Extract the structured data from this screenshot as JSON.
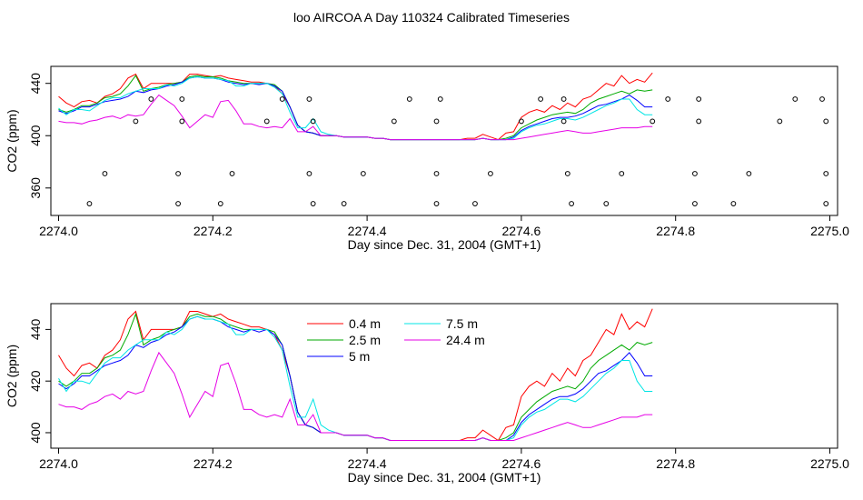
{
  "figure": {
    "title": "loo AIRCOA A  Day 110324  Calibrated Timeseries"
  },
  "chart_data": [
    {
      "type": "line",
      "ylabel": "CO2 (ppm)",
      "xlabel": "Day since Dec. 31, 2004 (GMT+1)",
      "xlim": [
        2273.99,
        2275.01
      ],
      "ylim": [
        339,
        453
      ],
      "xticks": [
        "2274.0",
        "2274.2",
        "2274.4",
        "2274.6",
        "2274.8",
        "2275.0"
      ],
      "yticks": [
        "360",
        "400",
        "440"
      ],
      "series_colors": [
        "#ff0000",
        "#00aa00",
        "#0000ff",
        "#00e5e5",
        "#e600e6"
      ],
      "points_description": "open circle markers",
      "points": [
        [
          2274.04,
          348
        ],
        [
          2274.06,
          371
        ],
        [
          2274.1,
          411
        ],
        [
          2274.12,
          428
        ],
        [
          2274.155,
          348
        ],
        [
          2274.155,
          371
        ],
        [
          2274.16,
          411
        ],
        [
          2274.16,
          428
        ],
        [
          2274.21,
          348
        ],
        [
          2274.225,
          371
        ],
        [
          2274.27,
          411
        ],
        [
          2274.29,
          428
        ],
        [
          2274.325,
          371
        ],
        [
          2274.325,
          428
        ],
        [
          2274.33,
          348
        ],
        [
          2274.33,
          411
        ],
        [
          2274.37,
          348
        ],
        [
          2274.395,
          371
        ],
        [
          2274.435,
          411
        ],
        [
          2274.455,
          428
        ],
        [
          2274.49,
          348
        ],
        [
          2274.49,
          371
        ],
        [
          2274.49,
          411
        ],
        [
          2274.495,
          428
        ],
        [
          2274.54,
          348
        ],
        [
          2274.56,
          371
        ],
        [
          2274.6,
          411
        ],
        [
          2274.625,
          428
        ],
        [
          2274.655,
          428
        ],
        [
          2274.655,
          411
        ],
        [
          2274.66,
          371
        ],
        [
          2274.665,
          348
        ],
        [
          2274.71,
          348
        ],
        [
          2274.73,
          371
        ],
        [
          2274.77,
          411
        ],
        [
          2274.79,
          428
        ],
        [
          2274.825,
          348
        ],
        [
          2274.825,
          371
        ],
        [
          2274.83,
          411
        ],
        [
          2274.83,
          428
        ],
        [
          2274.875,
          348
        ],
        [
          2274.895,
          371
        ],
        [
          2274.935,
          411
        ],
        [
          2274.955,
          428
        ],
        [
          2274.99,
          428
        ],
        [
          2274.995,
          411
        ],
        [
          2274.995,
          371
        ],
        [
          2274.995,
          348
        ]
      ]
    },
    {
      "type": "line",
      "ylabel": "CO2 (ppm)",
      "xlabel": "Day since Dec. 31, 2004 (GMT+1)",
      "xlim": [
        2273.99,
        2275.01
      ],
      "ylim": [
        394,
        450
      ],
      "xticks": [
        "2274.0",
        "2274.2",
        "2274.4",
        "2274.6",
        "2274.8",
        "2275.0"
      ],
      "yticks": [
        "400",
        "420",
        "440"
      ],
      "legend": {
        "position": "top-center"
      },
      "series": [
        {
          "name": "0.4 m",
          "color": "#ff0000"
        },
        {
          "name": "2.5 m",
          "color": "#00aa00"
        },
        {
          "name": "5 m",
          "color": "#0000ff"
        },
        {
          "name": "7.5 m",
          "color": "#00e5e5"
        },
        {
          "name": "24.4 m",
          "color": "#e600e6"
        }
      ]
    }
  ],
  "series_shared": {
    "step": 0.01,
    "x_start": 2274.0,
    "values": [
      [
        430,
        425,
        422,
        426,
        427,
        425,
        430,
        432,
        436,
        444,
        447,
        436,
        440,
        440,
        440,
        440,
        441,
        447,
        447,
        446,
        445,
        446,
        444,
        443,
        442,
        441,
        441,
        440,
        438,
        432,
        422,
        408,
        403,
        402,
        400,
        400,
        400,
        399,
        399,
        399,
        399,
        398,
        398,
        397,
        397,
        397,
        397,
        397,
        397,
        397,
        397,
        397,
        397,
        398,
        398,
        401,
        399,
        397,
        402,
        403,
        414,
        418,
        420,
        418,
        423,
        420,
        425,
        422,
        428,
        430,
        435,
        440,
        438,
        446,
        440,
        443,
        441,
        448
      ],
      [
        420,
        418,
        420,
        423,
        423,
        425,
        429,
        430,
        432,
        438,
        446,
        434,
        436,
        437,
        439,
        440,
        441,
        445,
        446,
        445,
        445,
        444,
        442,
        441,
        440,
        440,
        440,
        440,
        439,
        434,
        422,
        408,
        403,
        402,
        400,
        400,
        400,
        399,
        399,
        399,
        399,
        398,
        398,
        397,
        397,
        397,
        397,
        397,
        397,
        397,
        397,
        397,
        397,
        397,
        397,
        398,
        397,
        397,
        398,
        400,
        406,
        409,
        412,
        414,
        416,
        417,
        418,
        417,
        420,
        425,
        428,
        430,
        432,
        434,
        432,
        435,
        434,
        435
      ],
      [
        419,
        417,
        419,
        422,
        422,
        424,
        426,
        427,
        428,
        430,
        434,
        433,
        435,
        436,
        438,
        439,
        441,
        444,
        445,
        444,
        444,
        443,
        441,
        440,
        439,
        440,
        439,
        440,
        438,
        434,
        422,
        408,
        403,
        402,
        400,
        400,
        400,
        399,
        399,
        399,
        399,
        398,
        398,
        397,
        397,
        397,
        397,
        397,
        397,
        397,
        397,
        397,
        397,
        397,
        397,
        398,
        397,
        397,
        397,
        399,
        404,
        407,
        409,
        411,
        413,
        414,
        414,
        415,
        417,
        420,
        423,
        424,
        426,
        428,
        431,
        427,
        422,
        422
      ],
      [
        421,
        416,
        420,
        420,
        419,
        423,
        427,
        429,
        429,
        432,
        434,
        436,
        436,
        436,
        439,
        438,
        440,
        444,
        445,
        444,
        444,
        443,
        442,
        438,
        438,
        440,
        440,
        440,
        437,
        432,
        418,
        406,
        406,
        413,
        403,
        401,
        400,
        399,
        399,
        399,
        399,
        398,
        398,
        397,
        397,
        397,
        397,
        397,
        397,
        397,
        397,
        397,
        397,
        397,
        397,
        398,
        397,
        397,
        397,
        398,
        403,
        406,
        408,
        409,
        411,
        413,
        413,
        412,
        414,
        417,
        420,
        423,
        425,
        428,
        428,
        420,
        416,
        416
      ],
      [
        411,
        410,
        410,
        409,
        411,
        412,
        414,
        415,
        413,
        416,
        415,
        416,
        424,
        431,
        427,
        423,
        415,
        406,
        411,
        416,
        414,
        426,
        427,
        419,
        409,
        409,
        407,
        406,
        407,
        406,
        413,
        403,
        403,
        407,
        400,
        400,
        400,
        399,
        399,
        399,
        399,
        398,
        398,
        397,
        397,
        397,
        397,
        397,
        397,
        397,
        397,
        397,
        397,
        397,
        397,
        398,
        397,
        397,
        397,
        397,
        398,
        399,
        400,
        401,
        402,
        403,
        404,
        403,
        402,
        402,
        403,
        404,
        405,
        406,
        406,
        406,
        407,
        407
      ]
    ]
  }
}
